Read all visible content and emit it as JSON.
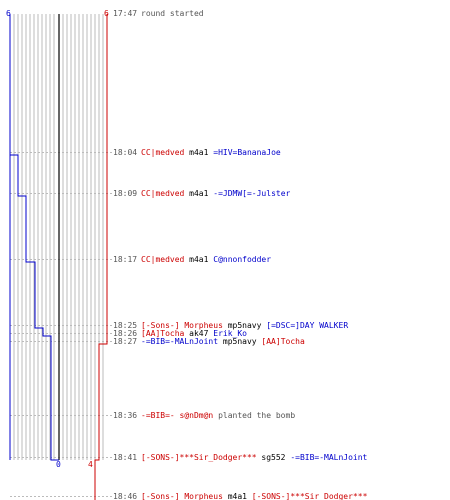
{
  "score": {
    "blue_start": "6",
    "red_start": "6",
    "blue_end": "0",
    "red_end": "4"
  },
  "colors": {
    "blue": "#0000cc",
    "red": "#cc0000",
    "grid": "#aaaaaa",
    "center": "#333333",
    "time": "#555555",
    "dash": "#bbbbbb"
  },
  "events": [
    {
      "time": "17:47",
      "parts": [
        {
          "text": "round started",
          "color": "#555555"
        }
      ]
    },
    {
      "time": "18:04",
      "parts": [
        {
          "text": "CC|medved",
          "color": "#cc0000"
        },
        {
          "text": " m4a1 ",
          "color": "#000000"
        },
        {
          "text": "=HIV=BananaJoe",
          "color": "#0000cc"
        }
      ]
    },
    {
      "time": "18:09",
      "parts": [
        {
          "text": "CC|medved",
          "color": "#cc0000"
        },
        {
          "text": " m4a1 ",
          "color": "#000000"
        },
        {
          "text": "-=JDMW[=-Julster",
          "color": "#0000cc"
        }
      ]
    },
    {
      "time": "18:17",
      "parts": [
        {
          "text": "CC|medved",
          "color": "#cc0000"
        },
        {
          "text": " m4a1 ",
          "color": "#000000"
        },
        {
          "text": "C@nnonfodder",
          "color": "#0000cc"
        }
      ]
    },
    {
      "time": "18:25",
      "parts": [
        {
          "text": "[-Sons-] Morpheus",
          "color": "#cc0000"
        },
        {
          "text": " mp5navy ",
          "color": "#000000"
        },
        {
          "text": "[=DSC=]DAY WALKER",
          "color": "#0000cc"
        }
      ]
    },
    {
      "time": "18:26",
      "parts": [
        {
          "text": "[AA]Tocha",
          "color": "#cc0000"
        },
        {
          "text": " ak47 ",
          "color": "#000000"
        },
        {
          "text": "Erik_Ko",
          "color": "#0000cc"
        }
      ]
    },
    {
      "time": "18:27",
      "parts": [
        {
          "text": "-=BIB=-MALnJoint",
          "color": "#0000cc"
        },
        {
          "text": " mp5navy ",
          "color": "#000000"
        },
        {
          "text": "[AA]Tocha",
          "color": "#cc0000"
        }
      ]
    },
    {
      "time": "18:36",
      "parts": [
        {
          "text": "-=BIB=-",
          "color": "#cc0000"
        },
        {
          "text": " s@nDm@n",
          "color": "#cc0000"
        },
        {
          "text": " planted the bomb",
          "color": "#555555"
        }
      ]
    },
    {
      "time": "18:41",
      "parts": [
        {
          "text": "[-SONS-]***Sir_Dodger***",
          "color": "#cc0000"
        },
        {
          "text": " sg552 ",
          "color": "#000000"
        },
        {
          "text": "-=BIB=-MALnJoint",
          "color": "#0000cc"
        }
      ]
    },
    {
      "time": "18:46",
      "parts": [
        {
          "text": "[-Sons-] Morpheus",
          "color": "#cc0000"
        },
        {
          "text": " m4a1 ",
          "color": "#000000"
        },
        {
          "text": "[-SONS-]***Sir_Dodger***",
          "color": "#cc0000"
        }
      ]
    }
  ]
}
